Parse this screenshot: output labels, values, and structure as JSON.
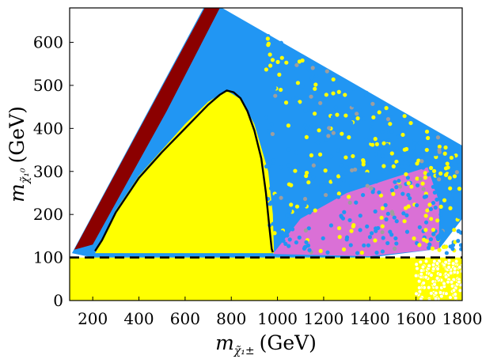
{
  "chart_data": {
    "type": "scatter",
    "title": "",
    "xlabel": {
      "var": "m",
      "sub": "χ̃₁±",
      "unit": "(GeV)"
    },
    "ylabel": {
      "var": "m",
      "sub": "χ̃₁⁰",
      "unit": "(GeV)"
    },
    "xlim": [
      100,
      1800
    ],
    "ylim": [
      0,
      680
    ],
    "xticks": [
      200,
      400,
      600,
      800,
      1000,
      1200,
      1400,
      1600,
      1800
    ],
    "yticks": [
      0,
      100,
      200,
      300,
      400,
      500,
      600
    ],
    "grid": false,
    "legend": "none",
    "colors": {
      "yellow": "#ffff00",
      "blue": "#2196f3",
      "darkred": "#8b0000",
      "pink": "#da70d6",
      "grey": "#9e9e9e",
      "black": "#000000"
    },
    "regions": [
      {
        "name": "yellow-excluded-band",
        "color": "yellow",
        "polygon": [
          [
            100,
            0
          ],
          [
            1800,
            0
          ],
          [
            1800,
            100
          ],
          [
            100,
            100
          ]
        ]
      },
      {
        "name": "blue-allowed-region",
        "color": "blue",
        "polygon": [
          [
            110,
            110
          ],
          [
            700,
            700
          ],
          [
            760,
            680
          ],
          [
            1800,
            360
          ],
          [
            1800,
            190
          ],
          [
            1700,
            120
          ],
          [
            1400,
            100
          ],
          [
            1000,
            100
          ],
          [
            200,
            100
          ]
        ]
      },
      {
        "name": "darkred-diagonal-strip",
        "color": "darkred",
        "polygon": [
          [
            120,
            118
          ],
          [
            700,
            695
          ],
          [
            760,
            690
          ],
          [
            520,
            440
          ],
          [
            200,
            130
          ]
        ]
      },
      {
        "name": "yellow-exclusion-dome",
        "color": "yellow",
        "polygon": [
          [
            210,
            110
          ],
          [
            300,
            210
          ],
          [
            400,
            290
          ],
          [
            500,
            350
          ],
          [
            600,
            410
          ],
          [
            700,
            462
          ],
          [
            780,
            488
          ],
          [
            840,
            468
          ],
          [
            900,
            410
          ],
          [
            960,
            300
          ],
          [
            980,
            200
          ],
          [
            985,
            110
          ]
        ]
      },
      {
        "name": "pink-triangle-region",
        "color": "pink",
        "polygon": [
          [
            980,
            108
          ],
          [
            1100,
            190
          ],
          [
            1300,
            250
          ],
          [
            1500,
            285
          ],
          [
            1650,
            310
          ],
          [
            1700,
            230
          ],
          [
            1700,
            120
          ],
          [
            1400,
            103
          ]
        ]
      }
    ],
    "series": [
      {
        "name": "black-contour-solid",
        "style": "solid",
        "color": "black",
        "points": [
          [
            210,
            115
          ],
          [
            240,
            140
          ],
          [
            300,
            205
          ],
          [
            400,
            285
          ],
          [
            500,
            345
          ],
          [
            600,
            400
          ],
          [
            700,
            455
          ],
          [
            750,
            478
          ],
          [
            780,
            488
          ],
          [
            810,
            484
          ],
          [
            840,
            470
          ],
          [
            870,
            440
          ],
          [
            900,
            395
          ],
          [
            930,
            330
          ],
          [
            950,
            250
          ],
          [
            965,
            170
          ],
          [
            975,
            120
          ],
          [
            980,
            112
          ]
        ]
      },
      {
        "name": "black-dashed-line",
        "style": "dashed",
        "color": "black",
        "points": [
          [
            100,
            100
          ],
          [
            1800,
            100
          ]
        ]
      }
    ]
  }
}
